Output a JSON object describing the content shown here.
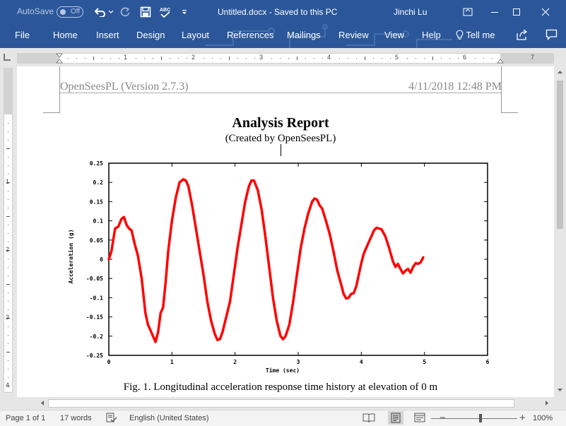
{
  "titlebar": {
    "autosave_label": "AutoSave",
    "autosave_state": "Off",
    "document_name": "Untitled.docx",
    "save_status": "Saved to this PC",
    "document_status_text": "Untitled.docx  -  Saved to this PC",
    "user_name": "Jinchi Lu",
    "background_color": "#2b579a",
    "icons": [
      "undo-icon",
      "redo-icon",
      "save-icon",
      "spelling-check-icon",
      "customize-quick-access-icon",
      "ribbon-display-options-icon",
      "minimize-icon",
      "maximize-icon",
      "close-icon"
    ]
  },
  "ribbon": {
    "tabs": [
      {
        "label": "File"
      },
      {
        "label": "Home"
      },
      {
        "label": "Insert"
      },
      {
        "label": "Design"
      },
      {
        "label": "Layout"
      },
      {
        "label": "References"
      },
      {
        "label": "Mailings"
      },
      {
        "label": "Review"
      },
      {
        "label": "View"
      },
      {
        "label": "Help"
      }
    ],
    "tell_me": "Tell me"
  },
  "ruler": {
    "horizontal_labels": [
      "1",
      "2",
      "3",
      "4",
      "5",
      "6",
      "7"
    ],
    "vertical_labels": [
      "1",
      "2",
      "3",
      "4"
    ]
  },
  "document": {
    "header_left": "OpenSeesPL (Version 2.7.3)",
    "header_right": "4/11/2018 12:48 PM",
    "title": "Analysis Report",
    "subtitle": "(Created by OpenSeesPL)",
    "figure_caption": "Fig. 1. Longitudinal acceleration response time history at elevation of 0 m"
  },
  "chart_data": {
    "type": "line",
    "xlabel": "Time (sec)",
    "ylabel": "Acceleration (g)",
    "xlim": [
      0,
      6
    ],
    "ylim": [
      -0.25,
      0.25
    ],
    "x_ticks": [
      "0",
      "1",
      "2",
      "3",
      "4",
      "5",
      "6"
    ],
    "y_ticks": [
      "0.25",
      "0.2",
      "0.15",
      "0.1",
      "0.05",
      "0",
      "-0.05",
      "-0.1",
      "-0.15",
      "-0.2",
      "-0.25"
    ],
    "grid": false,
    "series": [
      {
        "color": "#ff0000",
        "x": [
          0,
          0.04,
          0.1,
          0.15,
          0.2,
          0.24,
          0.28,
          0.32,
          0.36,
          0.41,
          0.46,
          0.52,
          0.58,
          0.62,
          0.66,
          0.7,
          0.74,
          0.78,
          0.82,
          0.86,
          0.9,
          0.94,
          1.0,
          1.06,
          1.12,
          1.18,
          1.22,
          1.26,
          1.32,
          1.38,
          1.44,
          1.5,
          1.56,
          1.62,
          1.68,
          1.72,
          1.76,
          1.8,
          1.86,
          1.92,
          1.98,
          2.04,
          2.1,
          2.16,
          2.22,
          2.26,
          2.3,
          2.36,
          2.42,
          2.48,
          2.54,
          2.6,
          2.66,
          2.72,
          2.76,
          2.8,
          2.86,
          2.92,
          2.98,
          3.04,
          3.1,
          3.16,
          3.22,
          3.26,
          3.3,
          3.34,
          3.38,
          3.44,
          3.5,
          3.56,
          3.62,
          3.68,
          3.72,
          3.76,
          3.8,
          3.84,
          3.88,
          3.92,
          3.96,
          4.0,
          4.04,
          4.1,
          4.16,
          4.2,
          4.24,
          4.28,
          4.32,
          4.38,
          4.44,
          4.5,
          4.54,
          4.58,
          4.62,
          4.66,
          4.7,
          4.74,
          4.78,
          4.82,
          4.86,
          4.9,
          4.94,
          4.98
        ],
        "y": [
          0.0,
          0.02,
          0.08,
          0.085,
          0.105,
          0.11,
          0.09,
          0.08,
          0.075,
          0.04,
          0.01,
          -0.05,
          -0.14,
          -0.17,
          -0.185,
          -0.2,
          -0.215,
          -0.19,
          -0.14,
          -0.125,
          -0.06,
          0.02,
          0.1,
          0.16,
          0.2,
          0.208,
          0.205,
          0.19,
          0.14,
          0.08,
          0.02,
          -0.04,
          -0.11,
          -0.16,
          -0.195,
          -0.21,
          -0.208,
          -0.19,
          -0.15,
          -0.11,
          -0.04,
          0.03,
          0.09,
          0.15,
          0.19,
          0.205,
          0.205,
          0.18,
          0.13,
          0.06,
          -0.02,
          -0.1,
          -0.16,
          -0.2,
          -0.208,
          -0.2,
          -0.17,
          -0.11,
          -0.04,
          0.03,
          0.08,
          0.12,
          0.15,
          0.158,
          0.155,
          0.14,
          0.132,
          0.1,
          0.065,
          0.02,
          -0.03,
          -0.065,
          -0.09,
          -0.102,
          -0.1,
          -0.09,
          -0.088,
          -0.07,
          -0.04,
          -0.01,
          0.015,
          0.038,
          0.06,
          0.075,
          0.082,
          0.08,
          0.078,
          0.06,
          0.03,
          -0.005,
          -0.02,
          -0.012,
          -0.025,
          -0.037,
          -0.03,
          -0.025,
          -0.035,
          -0.02,
          -0.01,
          -0.012,
          -0.008,
          0.005
        ]
      }
    ]
  },
  "status": {
    "page": "Page 1 of 1",
    "words": "17 words",
    "language": "English (United States)",
    "zoom": "100%",
    "icons": [
      "proofing-icon",
      "read-mode-icon",
      "print-layout-icon",
      "web-layout-icon",
      "zoom-out-icon",
      "zoom-in-icon"
    ]
  }
}
